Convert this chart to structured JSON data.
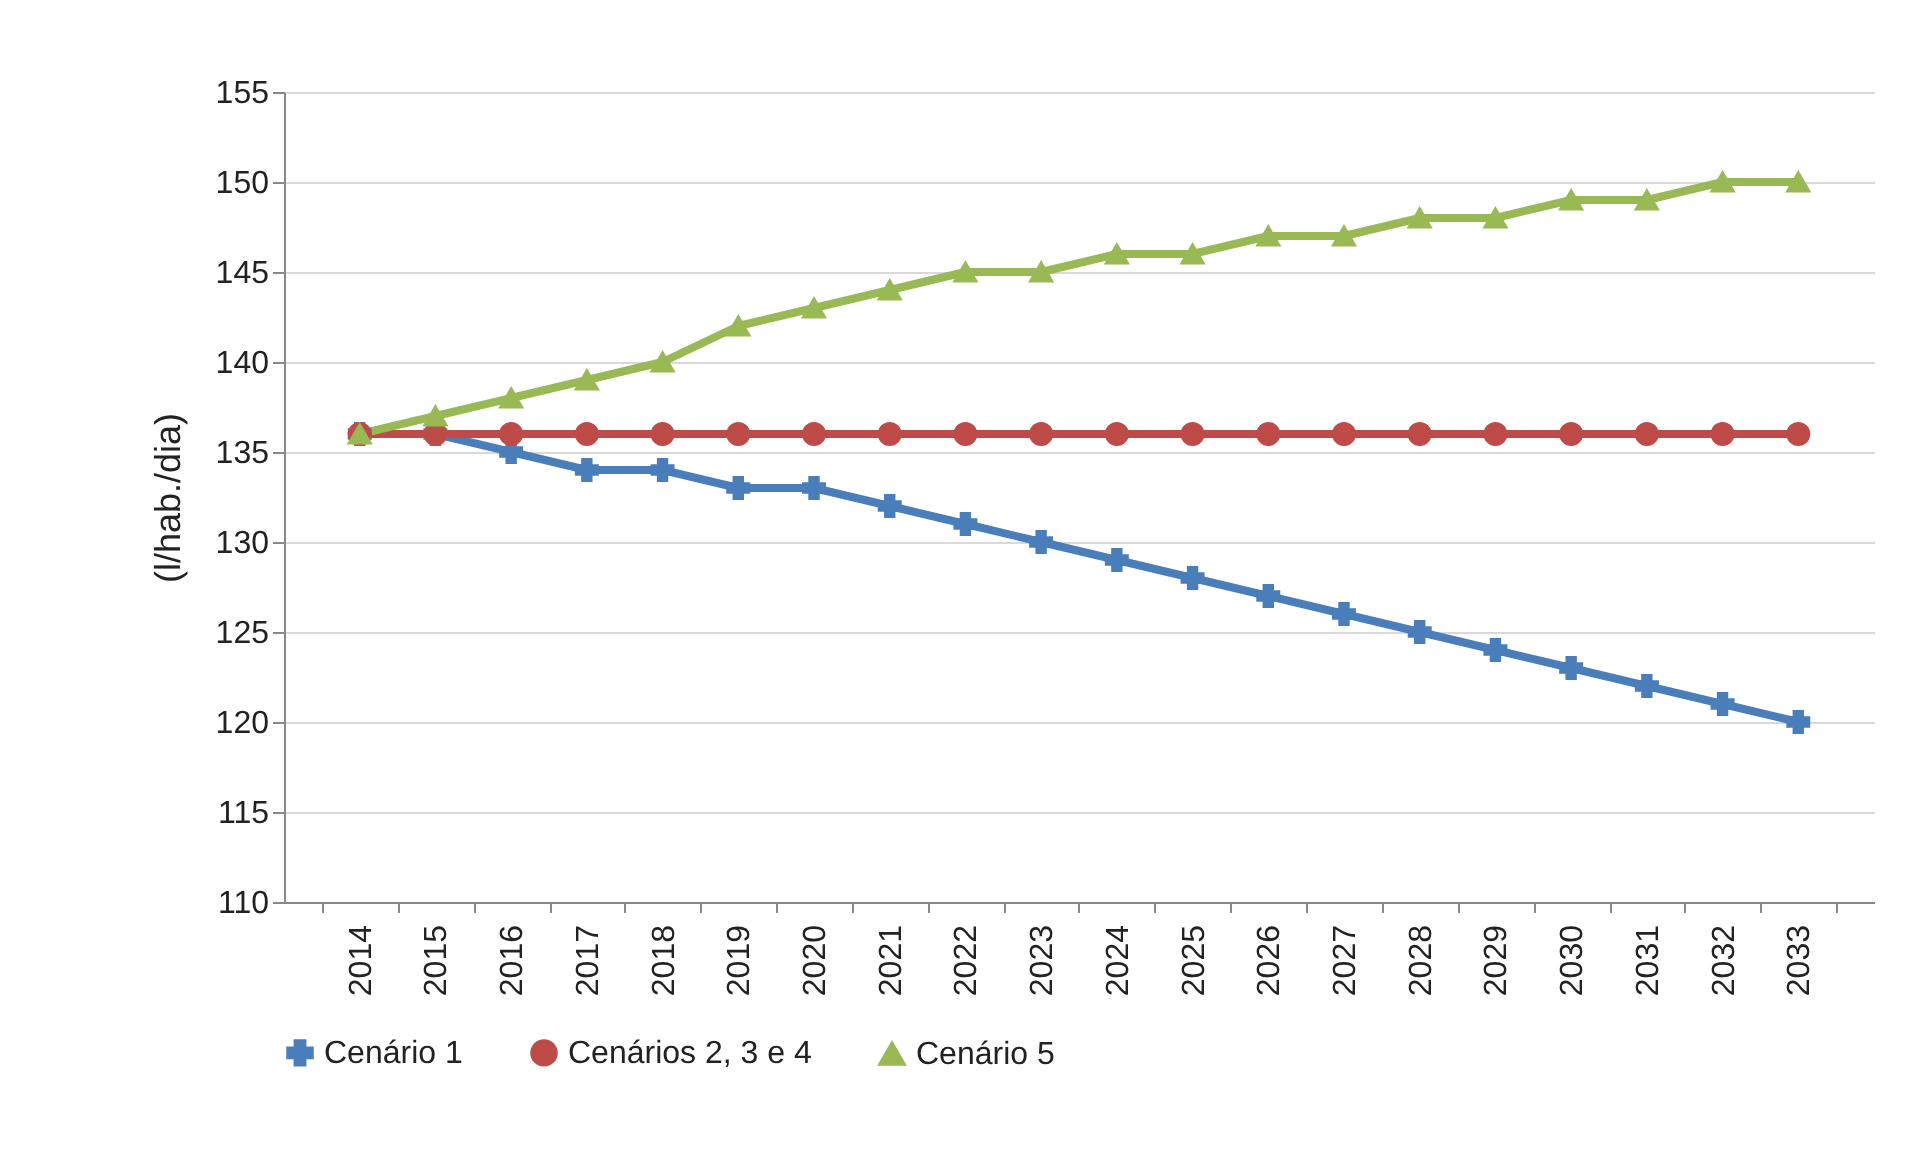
{
  "chart_data": {
    "type": "line",
    "ylabel": "(l/hab./dia)",
    "categories": [
      "2014",
      "2015",
      "2016",
      "2017",
      "2018",
      "2019",
      "2020",
      "2021",
      "2022",
      "2023",
      "2024",
      "2025",
      "2026",
      "2027",
      "2028",
      "2029",
      "2030",
      "2031",
      "2032",
      "2033"
    ],
    "series": [
      {
        "name": "Cenário 1",
        "color": "#4a7ebb",
        "marker": "cross",
        "values": [
          136,
          136,
          135,
          134,
          134,
          133,
          133,
          132,
          131,
          130,
          129,
          128,
          127,
          126,
          125,
          124,
          123,
          122,
          121,
          120
        ]
      },
      {
        "name": "Cenários 2, 3 e 4",
        "color": "#be4b48",
        "marker": "circle",
        "values": [
          136,
          136,
          136,
          136,
          136,
          136,
          136,
          136,
          136,
          136,
          136,
          136,
          136,
          136,
          136,
          136,
          136,
          136,
          136,
          136
        ]
      },
      {
        "name": "Cenário 5",
        "color": "#98b954",
        "marker": "triangle",
        "values": [
          136,
          137,
          138,
          139,
          140,
          142,
          143,
          144,
          145,
          145,
          146,
          146,
          147,
          147,
          148,
          148,
          149,
          149,
          150,
          150
        ]
      }
    ],
    "ylim": [
      110,
      155
    ],
    "yticks": [
      110,
      115,
      120,
      125,
      130,
      135,
      140,
      145,
      150,
      155
    ],
    "grid": "y",
    "legend": "bottom"
  }
}
